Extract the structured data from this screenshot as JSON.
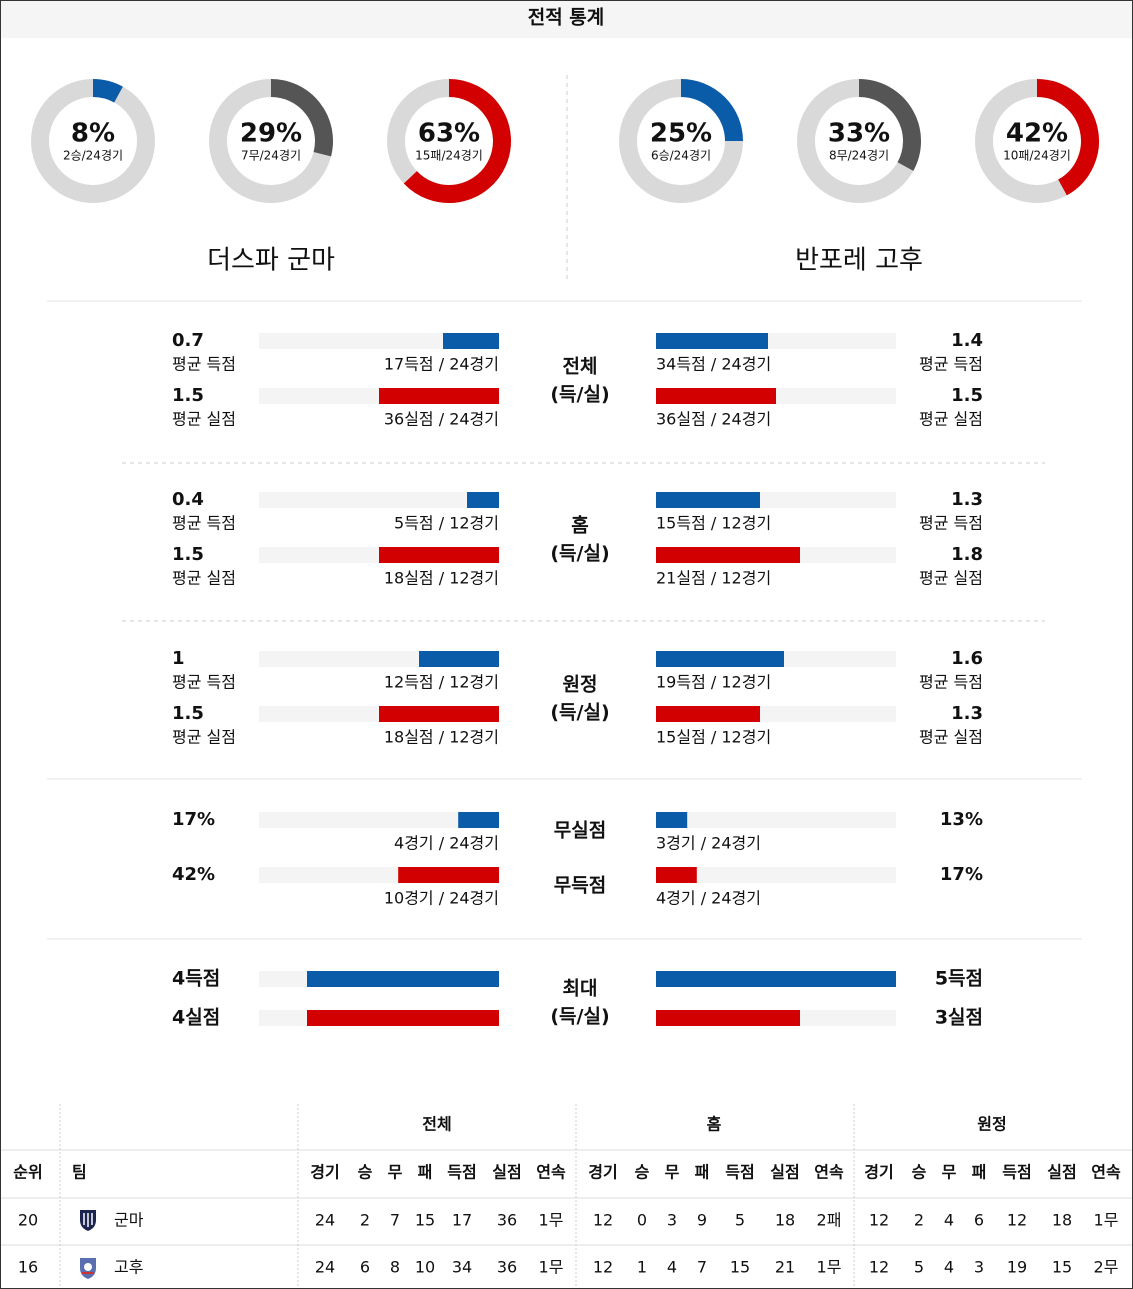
{
  "header": {
    "title": "전적 통계"
  },
  "teams": [
    {
      "name": "더스파 군마",
      "donuts": [
        {
          "value": 8,
          "label": "8%",
          "detail": "2승/24경기",
          "color": "#0a5ca8"
        },
        {
          "value": 29,
          "label": "29%",
          "detail": "7무/24경기",
          "color": "#555555"
        },
        {
          "value": 63,
          "label": "63%",
          "detail": "15패/24경기",
          "color": "#d20000"
        }
      ]
    },
    {
      "name": "반포레 고후",
      "donuts": [
        {
          "value": 25,
          "label": "25%",
          "detail": "6승/24경기",
          "color": "#0a5ca8"
        },
        {
          "value": 33,
          "label": "33%",
          "detail": "8무/24경기",
          "color": "#555555"
        },
        {
          "value": 42,
          "label": "42%",
          "detail": "10패/24경기",
          "color": "#d20000"
        }
      ]
    }
  ],
  "sections": [
    {
      "title": [
        "전체",
        "(득/실)"
      ],
      "xlim": [
        0,
        3
      ],
      "rows": [
        {
          "color": "#0a5ca8",
          "left": {
            "value": 0.7,
            "label": "평균 득점",
            "detail": "17득점 / 24경기"
          },
          "right": {
            "value": 1.4,
            "label": "평균 득점",
            "detail": "34득점 / 24경기"
          }
        },
        {
          "color": "#d20000",
          "left": {
            "value": 1.5,
            "label": "평균 실점",
            "detail": "36실점 / 24경기"
          },
          "right": {
            "value": 1.5,
            "label": "평균 실점",
            "detail": "36실점 / 24경기"
          }
        }
      ]
    },
    {
      "title": [
        "홈",
        "(득/실)"
      ],
      "xlim": [
        0,
        3
      ],
      "rows": [
        {
          "color": "#0a5ca8",
          "left": {
            "value": 0.4,
            "label": "평균 득점",
            "detail": "5득점 / 12경기"
          },
          "right": {
            "value": 1.3,
            "label": "평균 득점",
            "detail": "15득점 / 12경기"
          }
        },
        {
          "color": "#d20000",
          "left": {
            "value": 1.5,
            "label": "평균 실점",
            "detail": "18실점 / 12경기"
          },
          "right": {
            "value": 1.8,
            "label": "평균 실점",
            "detail": "21실점 / 12경기"
          }
        }
      ]
    },
    {
      "title": [
        "원정",
        "(득/실)"
      ],
      "xlim": [
        0,
        3
      ],
      "rows": [
        {
          "color": "#0a5ca8",
          "left": {
            "value": 1,
            "label": "평균 득점",
            "detail": "12득점 / 12경기"
          },
          "right": {
            "value": 1.6,
            "label": "평균 득점",
            "detail": "19득점 / 12경기"
          }
        },
        {
          "color": "#d20000",
          "left": {
            "value": 1.5,
            "label": "평균 실점",
            "detail": "18실점 / 12경기"
          },
          "right": {
            "value": 1.3,
            "label": "평균 실점",
            "detail": "15실점 / 12경기"
          }
        }
      ]
    },
    {
      "xlim": [
        0,
        100
      ],
      "rows": [
        {
          "title": "무실점",
          "color": "#0a5ca8",
          "left": {
            "value": 17,
            "value_label": "17%",
            "detail": "4경기 / 24경기"
          },
          "right": {
            "value": 13,
            "value_label": "13%",
            "detail": "3경기 / 24경기"
          }
        },
        {
          "title": "무득점",
          "color": "#d20000",
          "left": {
            "value": 42,
            "value_label": "42%",
            "detail": "10경기 / 24경기"
          },
          "right": {
            "value": 17,
            "value_label": "17%",
            "detail": "4경기 / 24경기"
          }
        }
      ]
    },
    {
      "title": [
        "최대",
        "(득/실)"
      ],
      "xlim": [
        0,
        5
      ],
      "rows": [
        {
          "color": "#0a5ca8",
          "left": {
            "value": 4,
            "value_label": "4득점"
          },
          "right": {
            "value": 5,
            "value_label": "5득점"
          }
        },
        {
          "color": "#d20000",
          "left": {
            "value": 4,
            "value_label": "4실점"
          },
          "right": {
            "value": 3,
            "value_label": "3실점"
          }
        }
      ]
    }
  ],
  "table": {
    "groups": [
      "전체",
      "홈",
      "원정"
    ],
    "columns": [
      "순위",
      "팀",
      "경기",
      "승",
      "무",
      "패",
      "득점",
      "실점",
      "연속",
      "경기",
      "승",
      "무",
      "패",
      "득점",
      "실점",
      "연속",
      "경기",
      "승",
      "무",
      "패",
      "득점",
      "실점",
      "연속"
    ],
    "rows": [
      [
        20,
        "군마",
        24,
        2,
        7,
        15,
        17,
        36,
        "1무",
        12,
        0,
        3,
        9,
        5,
        18,
        "2패",
        12,
        2,
        4,
        6,
        12,
        18,
        "1무"
      ],
      [
        16,
        "고후",
        24,
        6,
        8,
        10,
        34,
        36,
        "1무",
        12,
        1,
        4,
        7,
        15,
        21,
        "1무",
        12,
        5,
        4,
        3,
        19,
        15,
        "2무"
      ]
    ]
  }
}
